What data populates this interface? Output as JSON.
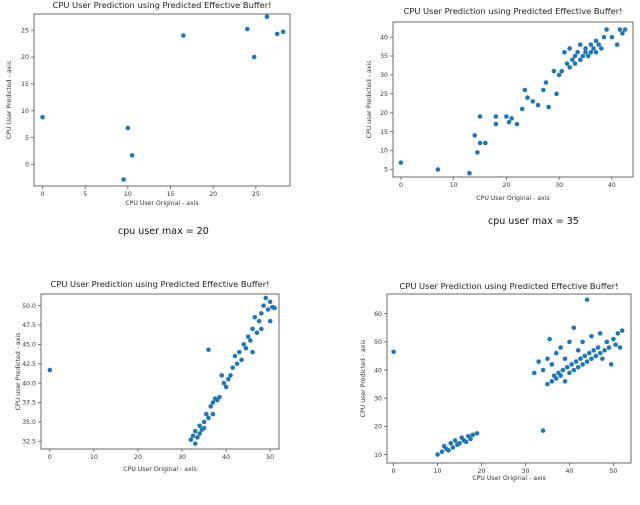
{
  "chart_data": [
    {
      "type": "scatter",
      "title": "CPU User Prediction using Predicted Effective Buffer!",
      "xlabel": "CPU User Original - axis",
      "ylabel": "CPU User Predicted - axis",
      "xlim": [
        -1,
        29
      ],
      "ylim": [
        -4,
        28
      ],
      "xticks": [
        0,
        5,
        10,
        15,
        20,
        25
      ],
      "yticks": [
        0,
        5,
        10,
        15,
        20,
        25
      ],
      "caption": "cpu user max = 20",
      "color": "#1f77b4",
      "points": [
        [
          0,
          8.8
        ],
        [
          9.5,
          -2.8
        ],
        [
          10,
          6.8
        ],
        [
          10.5,
          1.7
        ],
        [
          16.5,
          24
        ],
        [
          24,
          25.2
        ],
        [
          24.8,
          20
        ],
        [
          26.3,
          27.5
        ],
        [
          27.5,
          24.3
        ],
        [
          28.2,
          24.7
        ]
      ]
    },
    {
      "type": "scatter",
      "title": "CPU User Prediction using Predicted Effective Buffer!",
      "xlabel": "CPU User Original - axis",
      "ylabel": "CPU user Predicted - axis",
      "xlim": [
        -1.5,
        44
      ],
      "ylim": [
        3,
        44
      ],
      "xticks": [
        0,
        10,
        20,
        30,
        40
      ],
      "yticks": [
        5,
        10,
        15,
        20,
        25,
        30,
        35,
        40
      ],
      "caption": "cpu user max = 35",
      "color": "#1f77b4",
      "points": [
        [
          0,
          6.8
        ],
        [
          7,
          5
        ],
        [
          13,
          4
        ],
        [
          14,
          14
        ],
        [
          14.5,
          9.5
        ],
        [
          15,
          12
        ],
        [
          15,
          19
        ],
        [
          16,
          12
        ],
        [
          18,
          17
        ],
        [
          18,
          19
        ],
        [
          20,
          19
        ],
        [
          20.5,
          17.5
        ],
        [
          21,
          18.5
        ],
        [
          22,
          17
        ],
        [
          23,
          21
        ],
        [
          23.5,
          26
        ],
        [
          24,
          24
        ],
        [
          25,
          23
        ],
        [
          26,
          22
        ],
        [
          27,
          26
        ],
        [
          27.5,
          28
        ],
        [
          28,
          21.5
        ],
        [
          29,
          31
        ],
        [
          29.5,
          25
        ],
        [
          30,
          30
        ],
        [
          30.5,
          31
        ],
        [
          31,
          36
        ],
        [
          31.5,
          33
        ],
        [
          32,
          32
        ],
        [
          32,
          37
        ],
        [
          32.5,
          34
        ],
        [
          33,
          33
        ],
        [
          33,
          35
        ],
        [
          33.5,
          36
        ],
        [
          34,
          34
        ],
        [
          34,
          38
        ],
        [
          34.5,
          35
        ],
        [
          35,
          36
        ],
        [
          35,
          37
        ],
        [
          35.5,
          35
        ],
        [
          36,
          36
        ],
        [
          36,
          38
        ],
        [
          36.5,
          37
        ],
        [
          37,
          36
        ],
        [
          37,
          39
        ],
        [
          37.5,
          38
        ],
        [
          38,
          37
        ],
        [
          38.5,
          40
        ],
        [
          39,
          42
        ],
        [
          40,
          40
        ],
        [
          41,
          38
        ],
        [
          41.5,
          42
        ],
        [
          42,
          41
        ],
        [
          42.5,
          42
        ]
      ]
    },
    {
      "type": "scatter",
      "title": "CPU User Prediction using Predicted Effective Buffer!",
      "xlabel": "CPU User Original - axis",
      "ylabel": "CPU user Predicted - axis",
      "xlim": [
        -2,
        52
      ],
      "ylim": [
        31.5,
        51.5
      ],
      "xticks": [
        0,
        10,
        20,
        30,
        40,
        50
      ],
      "yticks": [
        32.5,
        35.0,
        37.5,
        40.0,
        42.5,
        45.0,
        47.5,
        50.0
      ],
      "caption": "",
      "color": "#1f77b4",
      "points": [
        [
          0,
          41.7
        ],
        [
          32,
          32.7
        ],
        [
          32.5,
          33.2
        ],
        [
          33,
          32.2
        ],
        [
          33,
          33.8
        ],
        [
          33.5,
          33
        ],
        [
          34,
          34.5
        ],
        [
          34,
          33.5
        ],
        [
          34.5,
          34
        ],
        [
          35,
          35
        ],
        [
          35,
          34.2
        ],
        [
          35.5,
          36
        ],
        [
          36,
          35.5
        ],
        [
          36,
          44.3
        ],
        [
          36.5,
          37
        ],
        [
          37,
          36
        ],
        [
          37,
          37.5
        ],
        [
          37.5,
          38
        ],
        [
          38,
          37.8
        ],
        [
          38.5,
          38.2
        ],
        [
          39,
          41
        ],
        [
          39.5,
          40
        ],
        [
          40,
          39.5
        ],
        [
          40.5,
          40.5
        ],
        [
          41,
          41
        ],
        [
          41.5,
          42
        ],
        [
          42,
          43.5
        ],
        [
          42.5,
          42.5
        ],
        [
          43,
          44
        ],
        [
          43.5,
          43
        ],
        [
          44,
          45
        ],
        [
          44.5,
          44.5
        ],
        [
          45,
          46
        ],
        [
          45.5,
          45.5
        ],
        [
          46,
          47
        ],
        [
          46,
          44
        ],
        [
          46.5,
          48.5
        ],
        [
          47,
          46.5
        ],
        [
          47.5,
          48
        ],
        [
          48,
          49
        ],
        [
          48,
          47
        ],
        [
          48.5,
          50
        ],
        [
          49,
          51
        ],
        [
          49.5,
          49.5
        ],
        [
          50,
          48
        ],
        [
          50,
          50.5
        ],
        [
          50.5,
          49.8
        ],
        [
          51,
          49.7
        ]
      ]
    },
    {
      "type": "scatter",
      "title": "CPU User Prediction using Predicted Effective Buffer!",
      "xlabel": "CPU User Original - axis",
      "ylabel": "CPU user Predicted - axis",
      "xlim": [
        -1.5,
        54
      ],
      "ylim": [
        7,
        67
      ],
      "xticks": [
        0,
        10,
        20,
        30,
        40,
        50
      ],
      "yticks": [
        10,
        20,
        30,
        40,
        50,
        60
      ],
      "caption": "",
      "color": "#1f77b4",
      "points": [
        [
          0,
          46.5
        ],
        [
          10,
          10
        ],
        [
          11,
          11
        ],
        [
          11.5,
          13
        ],
        [
          12,
          12
        ],
        [
          12.5,
          11.5
        ],
        [
          13,
          14
        ],
        [
          13.5,
          12.5
        ],
        [
          14,
          15
        ],
        [
          14.5,
          13.5
        ],
        [
          15,
          14
        ],
        [
          15.5,
          16
        ],
        [
          16,
          15
        ],
        [
          16.5,
          14.5
        ],
        [
          17,
          16.5
        ],
        [
          17.5,
          15.5
        ],
        [
          18,
          17
        ],
        [
          19,
          17.5
        ],
        [
          32,
          39
        ],
        [
          33,
          43
        ],
        [
          34,
          18.5
        ],
        [
          34,
          40
        ],
        [
          35,
          35
        ],
        [
          35,
          44
        ],
        [
          35.5,
          51
        ],
        [
          36,
          36
        ],
        [
          36,
          42
        ],
        [
          36.5,
          38
        ],
        [
          37,
          37
        ],
        [
          37,
          46
        ],
        [
          37.5,
          39
        ],
        [
          38,
          38
        ],
        [
          38,
          48
        ],
        [
          38.5,
          40
        ],
        [
          39,
          36
        ],
        [
          39,
          44
        ],
        [
          39.5,
          41
        ],
        [
          40,
          39
        ],
        [
          40,
          50
        ],
        [
          40.5,
          42
        ],
        [
          41,
          40
        ],
        [
          41,
          55
        ],
        [
          41.5,
          43
        ],
        [
          42,
          41
        ],
        [
          42,
          47
        ],
        [
          42.5,
          44
        ],
        [
          43,
          42
        ],
        [
          43,
          50
        ],
        [
          43.5,
          45
        ],
        [
          44,
          43
        ],
        [
          44,
          65
        ],
        [
          44.5,
          46
        ],
        [
          45,
          44
        ],
        [
          45,
          52
        ],
        [
          45.5,
          47
        ],
        [
          46,
          45
        ],
        [
          46.5,
          48
        ],
        [
          47,
          46
        ],
        [
          47,
          53
        ],
        [
          47.5,
          44
        ],
        [
          48,
          47
        ],
        [
          48.5,
          50
        ],
        [
          49,
          48
        ],
        [
          49.5,
          42
        ],
        [
          50,
          51
        ],
        [
          50.5,
          49
        ],
        [
          51,
          53
        ],
        [
          51.5,
          48
        ],
        [
          52,
          54
        ]
      ]
    }
  ]
}
